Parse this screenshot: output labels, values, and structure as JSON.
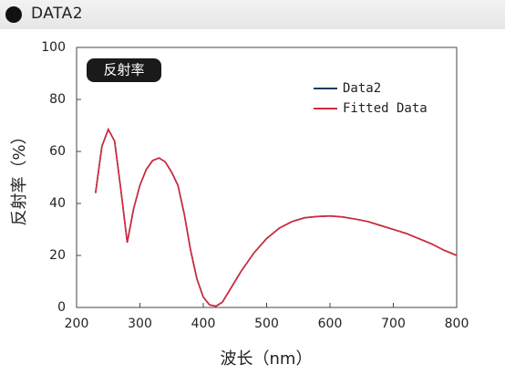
{
  "header": {
    "title": "DATA2"
  },
  "chart_data": {
    "type": "line",
    "annotation": "反射率",
    "x_label": "波长（nm）",
    "y_label": "反射率（%）",
    "x": [
      230,
      240,
      250,
      260,
      270,
      280,
      290,
      300,
      310,
      320,
      330,
      340,
      350,
      360,
      370,
      380,
      390,
      400,
      410,
      420,
      430,
      440,
      460,
      480,
      500,
      520,
      540,
      560,
      580,
      600,
      620,
      640,
      660,
      680,
      700,
      720,
      740,
      760,
      780,
      800
    ],
    "series": [
      {
        "name": "Data2",
        "color": "#1f3a5f",
        "values": [
          44,
          62,
          68.5,
          64,
          45,
          25,
          38,
          47,
          53,
          56.5,
          57.5,
          56,
          52,
          47,
          36,
          22,
          11,
          4,
          1,
          0.5,
          2,
          6,
          14,
          21,
          26.5,
          30.5,
          33,
          34.5,
          35,
          35.2,
          34.8,
          34,
          33,
          31.5,
          30,
          28.5,
          26.5,
          24.5,
          22,
          20
        ]
      },
      {
        "name": "Fitted Data",
        "color": "#d6293a",
        "values": [
          44,
          62,
          68.5,
          64,
          45,
          25,
          38,
          47,
          53,
          56.5,
          57.5,
          56,
          52,
          47,
          36,
          22,
          11,
          4,
          1,
          0.5,
          2,
          6,
          14,
          21,
          26.5,
          30.5,
          33,
          34.5,
          35,
          35.2,
          34.8,
          34,
          33,
          31.5,
          30,
          28.5,
          26.5,
          24.5,
          22,
          20
        ]
      }
    ],
    "xlim": [
      200,
      800
    ],
    "xticks": [
      200,
      300,
      400,
      500,
      600,
      700,
      800
    ],
    "ylim": [
      0,
      100
    ],
    "yticks": [
      0,
      20,
      40,
      60,
      80,
      100
    ],
    "legend": "upper right"
  }
}
